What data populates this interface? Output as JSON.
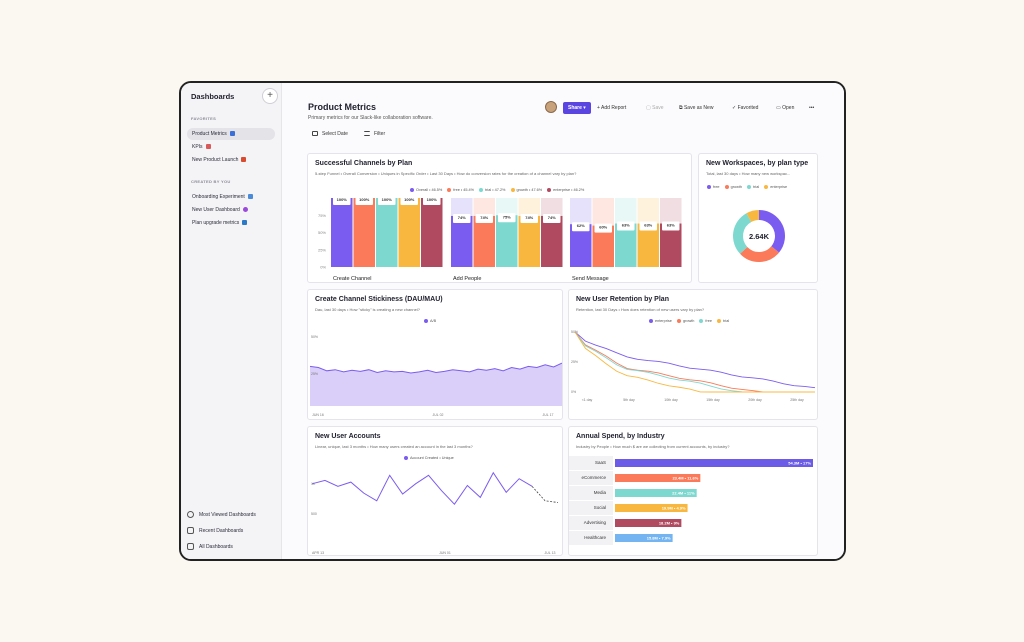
{
  "sidebar": {
    "title": "Dashboards",
    "plus": "+",
    "favorites_label": "FAVORITES",
    "favorites": [
      {
        "label": "Product Metrics",
        "color": "#3a6fd8"
      },
      {
        "label": "KPIs",
        "color": "#d85a5a"
      },
      {
        "label": "New Product Launch",
        "color": "#d94a2e"
      }
    ],
    "created_label": "CREATED BY YOU",
    "created": [
      {
        "label": "Onboarding Experiment",
        "color": "#4a8ad8"
      },
      {
        "label": "New User Dashboard",
        "color": "#9a4ad8"
      },
      {
        "label": "Plan upgrade metrics",
        "color": "#2a7ac8"
      }
    ],
    "bottom": [
      "Most Viewed Dashboards",
      "Recent Dashboards",
      "All Dashboards"
    ]
  },
  "header": {
    "title": "Product Metrics",
    "subtitle": "Primary metrics for our Slack-like collaboration software.",
    "share": "Share ▾",
    "add_report": "+ Add Report",
    "save": "Save",
    "save_as_new": "Save as New",
    "favorited": "✓ Favorited",
    "open": "Open",
    "more": "•••",
    "select_date": "Select Date",
    "filter": "Filter"
  },
  "colors": {
    "purple": "#7b5cf0",
    "orange": "#fa7a5a",
    "teal": "#7dd8d0",
    "yellow": "#f8b840",
    "maroon": "#b04a60",
    "accent": "#5b45e0"
  },
  "channels": {
    "title": "Successful Channels by Plan",
    "subtitle": "5-step Funnel • Overall Conversion • Uniques in Specific Order • Last 30 Days • How do conversion rates for the creation of a channel vary by plan?",
    "legend": [
      "Overall • 46.5%",
      "free • 45.4%",
      "trial • 47.2%",
      "growth • 47.6%",
      "enterprise • 46.2%"
    ],
    "yticks": [
      "0%",
      "25%",
      "50%",
      "75%"
    ],
    "groups": [
      {
        "label": "Create Channel",
        "values": [
          100,
          100,
          100,
          100,
          100
        ],
        "labels": [
          "100%",
          "100%",
          "100%",
          "100%",
          "100%"
        ]
      },
      {
        "label": "Add People",
        "values": [
          74,
          74,
          75,
          74,
          74
        ],
        "labels": [
          "74%",
          "74%",
          "75%",
          "74%",
          "74%"
        ]
      },
      {
        "label": "Send Message",
        "values": [
          62,
          60,
          63,
          63,
          63
        ],
        "labels": [
          "62%",
          "60%",
          "63%",
          "63%",
          "63%"
        ]
      }
    ]
  },
  "workspaces": {
    "title": "New Workspaces, by plan type",
    "subtitle": "Total, last 30 days • How many new workspac...",
    "legend": [
      "free",
      "growth",
      "trial",
      "enterprise"
    ],
    "center": "2.64K",
    "slices": [
      0.36,
      0.27,
      0.29,
      0.08
    ]
  },
  "stickiness": {
    "title": "Create Channel Stickiness (DAU/MAU)",
    "subtitle": "Dau, last 30 days • How \"sticky\" is creating a new channel?",
    "legend": "A/B",
    "xticks": [
      "JUN 16",
      "JUL 02",
      "JUL 17"
    ],
    "yticks": [
      "50%",
      "25%"
    ],
    "values": [
      72,
      70,
      64,
      66,
      62,
      65,
      63,
      66,
      61,
      64,
      62,
      63,
      60,
      62,
      65,
      61,
      63,
      66,
      64,
      62,
      67,
      65,
      68,
      64,
      70,
      67,
      72,
      70,
      75,
      71,
      78
    ]
  },
  "retention": {
    "title": "New User Retention by Plan",
    "subtitle": "Retention, last 30 Days • How does retention of new users vary by plan?",
    "legend": [
      "enterprise",
      "growth",
      "free",
      "trial"
    ],
    "xticks": [
      "<1 day",
      "5th day",
      "10th day",
      "15th day",
      "20th day",
      "25th day"
    ],
    "yticks": [
      "50%",
      "25%",
      "0%"
    ]
  },
  "accounts": {
    "title": "New User Accounts",
    "subtitle": "Linear, unique, last 3 months • How many users created an account in the last 3 months?",
    "legend": "Account Created • Unique",
    "xticks": [
      "APR 13",
      "JUN 01",
      "JUL 13"
    ],
    "yticks": [
      "1K",
      "500"
    ],
    "values": [
      720,
      760,
      690,
      740,
      610,
      520,
      820,
      600,
      720,
      820,
      640,
      480,
      700,
      560,
      850,
      620,
      780,
      690,
      520,
      500
    ]
  },
  "spend": {
    "title": "Annual Spend, by Industry",
    "subtitle": "Industry by People • How much $ are we collecting from current accounts, by industry?",
    "bars": [
      {
        "label": "SaaS",
        "value": 54.3,
        "text": "54.3M • 17%",
        "color": "#6b5be6"
      },
      {
        "label": "eCommerce",
        "value": 23.4,
        "text": "23.4M • 11.6%",
        "color": "#fa7a5a"
      },
      {
        "label": "Media",
        "value": 22.4,
        "text": "22.4M • 11%",
        "color": "#7dd8d0"
      },
      {
        "label": "Social",
        "value": 19.9,
        "text": "19.9M • 4.9%",
        "color": "#f8b840"
      },
      {
        "label": "Advertising",
        "value": 18.2,
        "text": "18.2M • 9%",
        "color": "#b04a60"
      },
      {
        "label": "Healthcare",
        "value": 15.8,
        "text": "15.8M • 7.9%",
        "color": "#74b4f0"
      }
    ]
  }
}
